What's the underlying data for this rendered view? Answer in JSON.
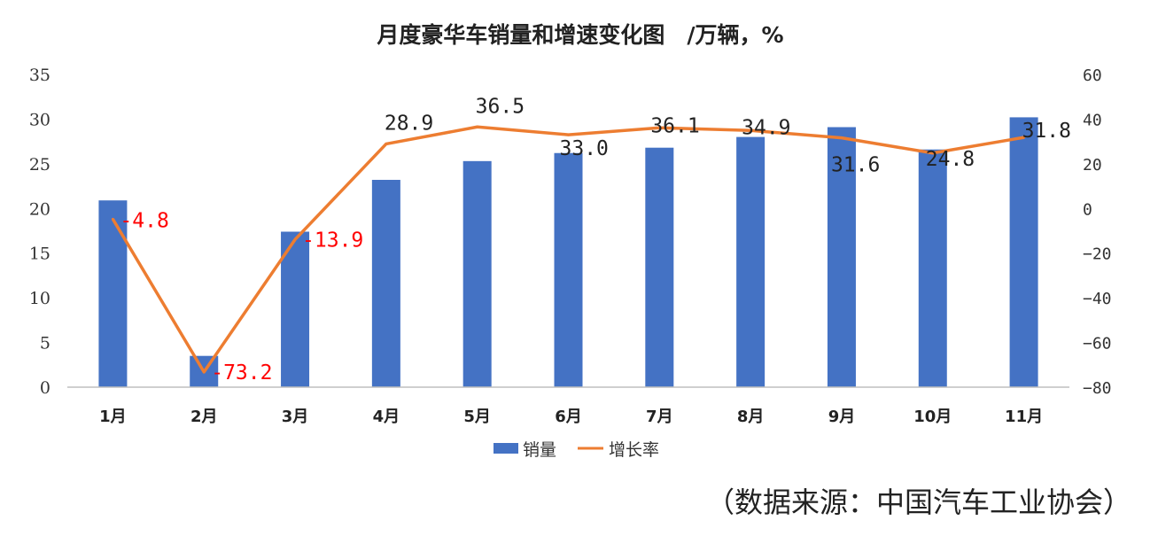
{
  "chart_data": {
    "type": "bar+line",
    "title": "月度豪华车销量和增速变化图　/万辆，%",
    "categories": [
      "1月",
      "2月",
      "3月",
      "4月",
      "5月",
      "6月",
      "7月",
      "8月",
      "9月",
      "10月",
      "11月"
    ],
    "series": [
      {
        "name": "销量",
        "type": "bar",
        "axis": "left",
        "color": "#4472C4",
        "values": [
          20.9,
          3.5,
          17.4,
          23.2,
          25.3,
          26.2,
          26.8,
          28.0,
          29.1,
          26.6,
          30.2
        ]
      },
      {
        "name": "增长率",
        "type": "line",
        "axis": "right",
        "color": "#ED7D31",
        "values": [
          -4.8,
          -73.2,
          -13.9,
          28.9,
          36.5,
          33.0,
          36.1,
          34.9,
          31.6,
          24.8,
          31.8
        ],
        "labels": [
          "-4.8",
          "-73.2",
          "-13.9",
          "28.9",
          "36.5",
          "33.0",
          "36.1",
          "34.9",
          "31.6",
          "24.8",
          "31.8"
        ]
      }
    ],
    "ylim_left": [
      0,
      35
    ],
    "yticks_left": [
      "0",
      "5",
      "10",
      "15",
      "20",
      "25",
      "30",
      "35"
    ],
    "ylim_right": [
      -80,
      60
    ],
    "yticks_right": [
      "−80",
      "−60",
      "−40",
      "−20",
      "0",
      "20",
      "40",
      "60"
    ],
    "negative_label_color": "#FF0000",
    "positive_label_color": "#222222",
    "grid": false,
    "legend_position": "bottom"
  },
  "source_note": "（数据来源：中国汽车工业协会）"
}
